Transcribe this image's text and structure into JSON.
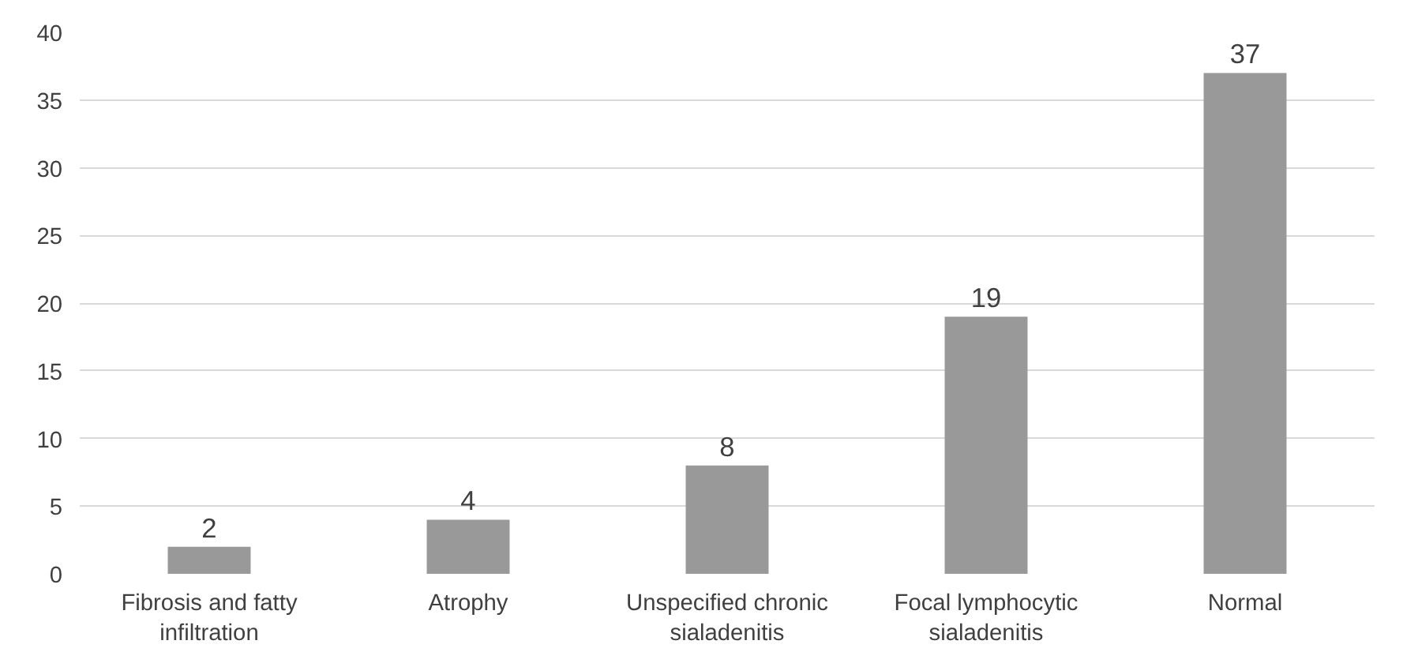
{
  "chart_data": {
    "type": "bar",
    "categories": [
      "Fibrosis and fatty infiltration",
      "Atrophy",
      "Unspecified chronic sialadenitis",
      "Focal lymphocytic sialadenitis",
      "Normal"
    ],
    "values": [
      2,
      4,
      8,
      19,
      37
    ],
    "color": "#999999",
    "ylim": [
      0,
      40
    ],
    "yticks": [
      0,
      5,
      10,
      15,
      20,
      25,
      30,
      35,
      40
    ],
    "grid": "y",
    "data_labels": true
  }
}
